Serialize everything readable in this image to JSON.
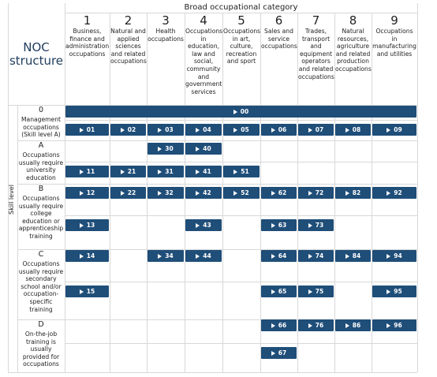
{
  "header": {
    "title": "Broad occupational category",
    "structure_label": "NOC structure",
    "skill_level_label": "Skill level"
  },
  "columns": [
    {
      "number": "1",
      "label": "Business, finance and administration occupations"
    },
    {
      "number": "2",
      "label": "Natural and applied sciences and related occupations"
    },
    {
      "number": "3",
      "label": "Health occupations"
    },
    {
      "number": "4",
      "label": "Occupations in education, law and social, community and government services"
    },
    {
      "number": "5",
      "label": "Occupations in art, culture, recreation and sport"
    },
    {
      "number": "6",
      "label": "Sales and service occupations"
    },
    {
      "number": "7",
      "label": "Trades, transport and equipment operators and related occupations"
    },
    {
      "number": "8",
      "label": "Natural resources, agriculture and related production occupations"
    },
    {
      "number": "9",
      "label": "Occupations in manufacturing and utilities"
    }
  ],
  "skill_levels": [
    {
      "code": "0",
      "label": "Management occupations (Skill level A)",
      "lines": [
        [
          "00"
        ],
        [
          "01",
          "02",
          "03",
          "04",
          "05",
          "06",
          "07",
          "08",
          "09"
        ]
      ]
    },
    {
      "code": "A",
      "label": "Occupations usually require university education",
      "lines": [
        [
          null,
          null,
          "30",
          "40",
          null,
          null,
          null,
          null,
          null
        ],
        [
          "11",
          "21",
          "31",
          "41",
          "51",
          null,
          null,
          null,
          null
        ]
      ]
    },
    {
      "code": "B",
      "label": "Occupations usually require college education or apprenticeship training",
      "lines": [
        [
          "12",
          "22",
          "32",
          "42",
          "52",
          "62",
          "72",
          "82",
          "92"
        ],
        [
          "13",
          null,
          null,
          "43",
          null,
          "63",
          "73",
          null,
          null
        ]
      ]
    },
    {
      "code": "C",
      "label": "Occupations usually require secondary school and/or occupation-specific training",
      "lines": [
        [
          "14",
          null,
          "34",
          "44",
          null,
          "64",
          "74",
          "84",
          "94"
        ],
        [
          "15",
          null,
          null,
          null,
          null,
          "65",
          "75",
          null,
          "95"
        ]
      ]
    },
    {
      "code": "D",
      "label": "On-the-job training is usually provided for occupations",
      "lines": [
        [
          null,
          null,
          null,
          null,
          null,
          "66",
          "76",
          "86",
          "96"
        ],
        [
          null,
          null,
          null,
          null,
          null,
          "67",
          null,
          null,
          null
        ]
      ]
    }
  ]
}
